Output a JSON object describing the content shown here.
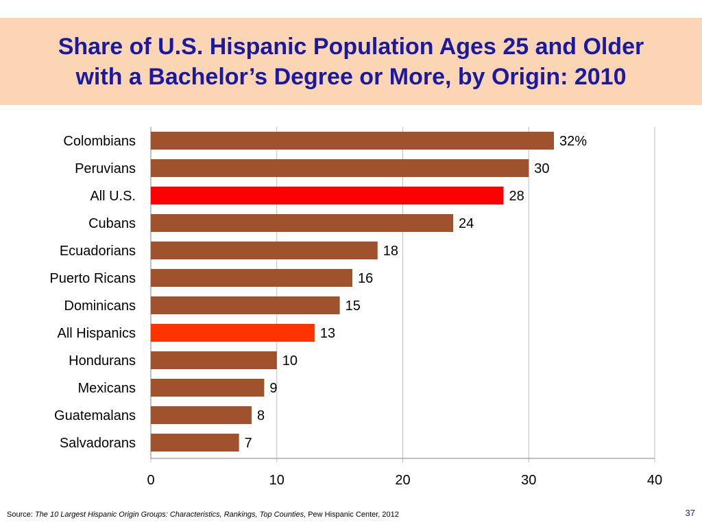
{
  "header": {
    "title_line_1": "Share of U.S. Hispanic Population Ages 25 and Older",
    "title_line_2": "with a Bachelor’s Degree or More, by Origin: 2010"
  },
  "chart_data": {
    "type": "bar",
    "orientation": "horizontal",
    "title": "Share of U.S. Hispanic Population Ages 25 and Older with a Bachelor’s Degree or More, by Origin: 2010",
    "xlabel": "",
    "ylabel": "",
    "xlim": [
      0,
      40
    ],
    "x_ticks": [
      "0",
      "10",
      "20",
      "30",
      "40"
    ],
    "grid": "vertical",
    "legend": "none",
    "categories": [
      "Colombians",
      "Peruvians",
      "All U.S.",
      "Cubans",
      "Ecuadorians",
      "Puerto Ricans",
      "Dominicans",
      "All Hispanics",
      "Hondurans",
      "Mexicans",
      "Guatemalans",
      "Salvadorans"
    ],
    "values": [
      32,
      30,
      28,
      24,
      18,
      16,
      15,
      13,
      10,
      9,
      8,
      7
    ],
    "data_labels": [
      "32%",
      "30",
      "28",
      "24",
      "18",
      "16",
      "15",
      "13",
      "10",
      "9",
      "8",
      "7"
    ],
    "colors": [
      "#a0522d",
      "#a0522d",
      "#ff0000",
      "#a0522d",
      "#a0522d",
      "#a0522d",
      "#a0522d",
      "#ff3300",
      "#a0522d",
      "#a0522d",
      "#a0522d",
      "#a0522d"
    ]
  },
  "footer": {
    "source_prefix": "Source: ",
    "source_title": "The 10 Largest Hispanic Origin Groups: Characteristics, Rankings, Top Counties,",
    "source_suffix": " Pew Hispanic Center, 2012",
    "page_number": "37"
  }
}
